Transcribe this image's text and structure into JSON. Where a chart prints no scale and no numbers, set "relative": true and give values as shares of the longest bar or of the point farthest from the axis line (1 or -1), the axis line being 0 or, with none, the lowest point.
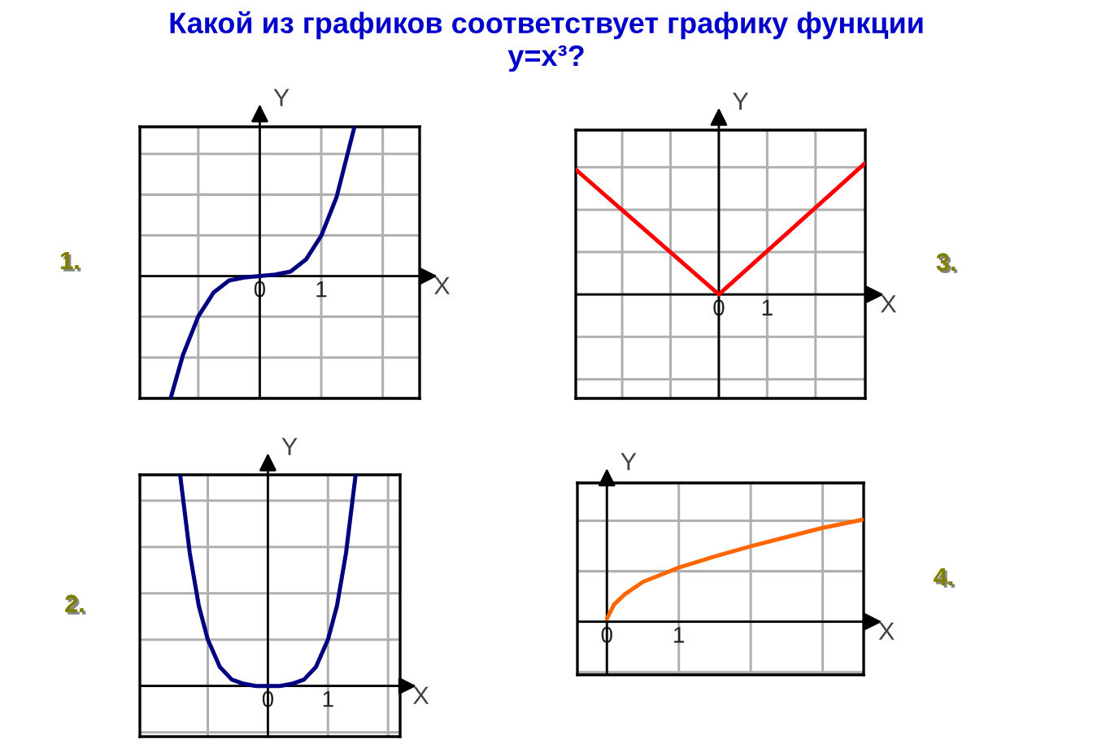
{
  "chart_data": [
    {
      "type": "line",
      "title": "Какой из графиков соответствует графику функции\ny=x³?",
      "annotations": [
        "1."
      ],
      "xlabel": "X",
      "ylabel": "Y",
      "xlim": [
        -1.95,
        2.6
      ],
      "xticks": [
        {
          "value": -1,
          "label": null
        },
        0,
        1,
        {
          "value": 2,
          "label": null
        }
      ],
      "relative": true,
      "tick_labels": "x",
      "grid": true,
      "series": [
        {
          "color": "#000080",
          "x": [
            -1.45,
            -1.25,
            -1.0,
            -0.75,
            -0.5,
            -0.25,
            0,
            0.25,
            0.5,
            0.75,
            1.0,
            1.25,
            1.54
          ],
          "values": [
            -0.82,
            -0.53,
            -0.27,
            -0.11,
            -0.03,
            -0.01,
            0,
            0.01,
            0.03,
            0.11,
            0.27,
            0.53,
            1
          ]
        }
      ]
    },
    {
      "type": "line",
      "annotations": [
        "3."
      ],
      "xlabel": "X",
      "ylabel": "Y",
      "xlim": [
        -2.96,
        3.03
      ],
      "xticks": [
        {
          "value": -2,
          "label": null
        },
        {
          "value": -1,
          "label": null
        },
        0,
        1,
        {
          "value": 2,
          "label": null
        }
      ],
      "relative": true,
      "tick_labels": "x",
      "grid": true,
      "series": [
        {
          "color": "#ff0000",
          "x": [
            -2.96,
            0,
            3.03
          ],
          "values": [
            0.95,
            0,
            1
          ]
        }
      ]
    },
    {
      "type": "line",
      "annotations": [
        "2."
      ],
      "xlabel": "X",
      "ylabel": "Y",
      "xlim": [
        -2.13,
        2.2
      ],
      "xticks": [
        {
          "value": -1,
          "label": null
        },
        0,
        1,
        {
          "value": 2,
          "label": null
        }
      ],
      "relative": true,
      "tick_labels": "x",
      "grid": true,
      "series": [
        {
          "color": "#000080",
          "x": [
            -1.46,
            -1.3,
            -1.15,
            -1.0,
            -0.8,
            -0.6,
            -0.4,
            -0.2,
            0,
            0.2,
            0.4,
            0.6,
            0.8,
            1.0,
            1.15,
            1.3,
            1.46
          ],
          "values": [
            1,
            0.63,
            0.38,
            0.22,
            0.09,
            0.03,
            0.01,
            0,
            0,
            0,
            0.01,
            0.03,
            0.09,
            0.22,
            0.38,
            0.63,
            1
          ]
        }
      ]
    },
    {
      "type": "line",
      "annotations": [
        "4."
      ],
      "xlabel": "X",
      "ylabel": "Y",
      "xlim": [
        -0.41,
        3.57
      ],
      "xticks": [
        0,
        1,
        {
          "value": 2,
          "label": null
        },
        {
          "value": 3,
          "label": null
        }
      ],
      "relative": true,
      "tick_labels": "x",
      "grid": true,
      "series": [
        {
          "color": "#ff6600",
          "x": [
            0,
            0.1,
            0.25,
            0.5,
            1.0,
            1.5,
            2.0,
            2.5,
            3.0,
            3.55
          ],
          "values": [
            0.03,
            0.17,
            0.27,
            0.39,
            0.53,
            0.64,
            0.74,
            0.83,
            0.92,
            1
          ]
        }
      ]
    }
  ]
}
